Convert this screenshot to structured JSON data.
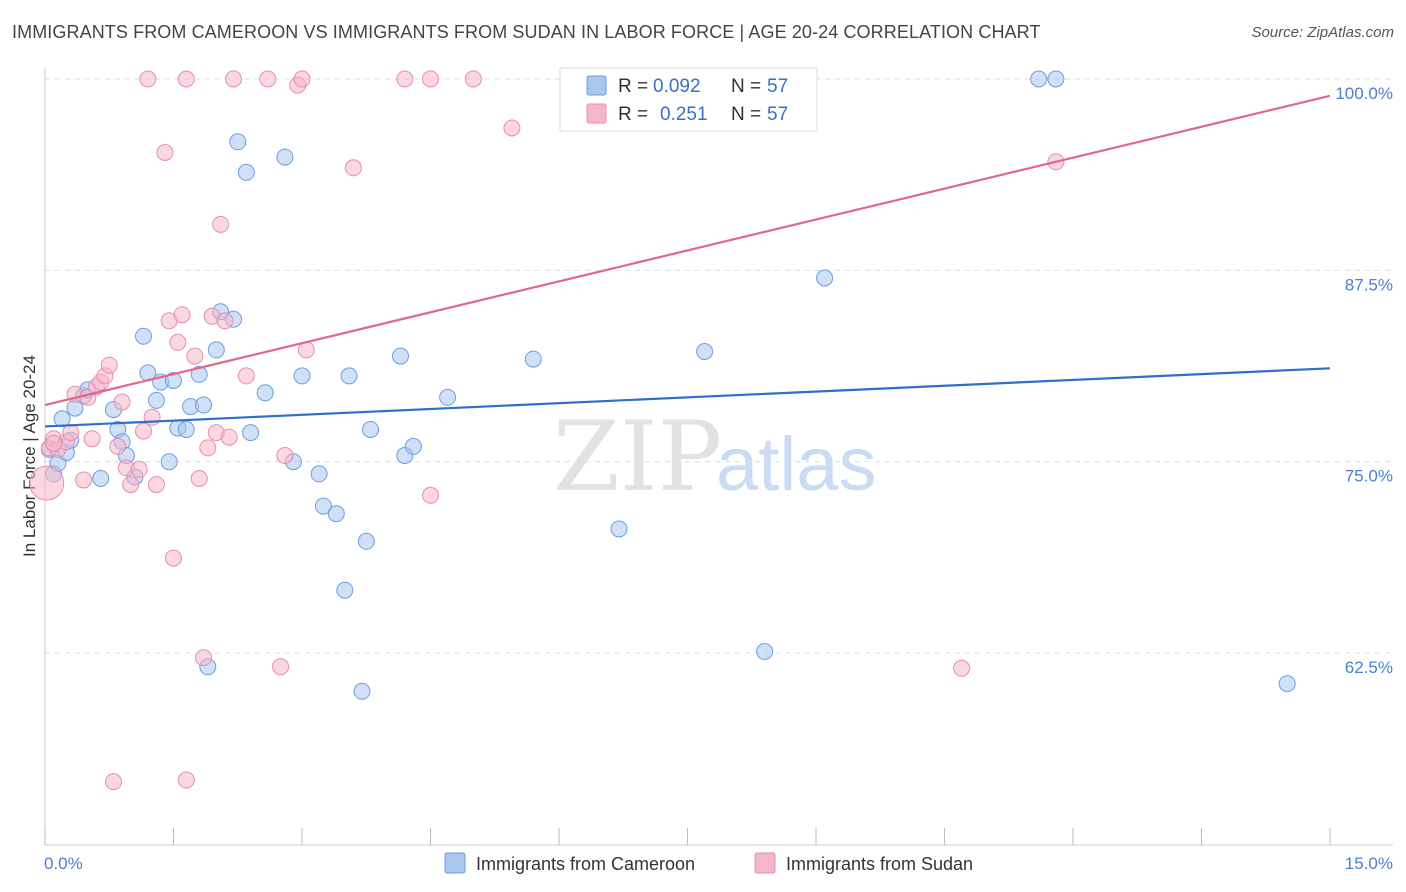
{
  "title": "IMMIGRANTS FROM CAMEROON VS IMMIGRANTS FROM SUDAN IN LABOR FORCE | AGE 20-24 CORRELATION CHART",
  "source": "Source: ZipAtlas.com",
  "watermark": {
    "zip": "ZIP",
    "atlas": "atlas"
  },
  "colors": {
    "cameroon_fill": "#a9c6ee",
    "cameroon_stroke": "#6d9ee0",
    "cameroon_line": "#2f6fcc",
    "sudan_fill": "#f6b6c9",
    "sudan_stroke": "#e58fac",
    "sudan_line": "#e2678f",
    "tick_text": "#4a7fd0",
    "grid": "#dddddd"
  },
  "legend": {
    "rows": [
      {
        "r_label": "R =",
        "r_value": "0.092",
        "n_label": "N =",
        "n_value": "57"
      },
      {
        "r_label": "R =",
        "r_value": "0.251",
        "n_label": "N =",
        "n_value": "57"
      }
    ]
  },
  "chart_data": {
    "type": "scatter",
    "title": "IMMIGRANTS FROM CAMEROON VS IMMIGRANTS FROM SUDAN IN LABOR FORCE | AGE 20-24 CORRELATION CHART",
    "xlabel": "",
    "ylabel": "In Labor Force | Age 20-24",
    "xlim": [
      0,
      15
    ],
    "ylim": [
      52,
      101
    ],
    "x_ticks": [
      "0.0%",
      "15.0%"
    ],
    "y_ticks": [
      {
        "value": 100,
        "label": "100.0%"
      },
      {
        "value": 87.5,
        "label": "87.5%"
      },
      {
        "value": 75,
        "label": "75.0%"
      },
      {
        "value": 62.5,
        "label": "62.5%"
      }
    ],
    "grid": true,
    "legend_position": "top-center",
    "series": [
      {
        "name": "Immigrants from Cameroon",
        "r": 0.092,
        "n": 57,
        "trend": {
          "x": [
            0,
            15
          ],
          "y": [
            77.3,
            81.1
          ]
        },
        "points": [
          [
            0.1,
            74.2
          ],
          [
            0.15,
            74.9
          ],
          [
            0.2,
            77.8
          ],
          [
            0.25,
            75.6
          ],
          [
            0.35,
            78.5
          ],
          [
            0.45,
            79.3
          ],
          [
            0.5,
            79.7
          ],
          [
            0.65,
            73.9
          ],
          [
            0.8,
            78.4
          ],
          [
            0.85,
            77.1
          ],
          [
            0.9,
            76.3
          ],
          [
            0.95,
            75.4
          ],
          [
            1.05,
            74
          ],
          [
            1.15,
            83.2
          ],
          [
            1.2,
            80.8
          ],
          [
            1.3,
            79.0
          ],
          [
            1.35,
            80.2
          ],
          [
            1.45,
            75.0
          ],
          [
            1.5,
            80.3
          ],
          [
            1.55,
            77.2
          ],
          [
            1.65,
            77.1
          ],
          [
            1.7,
            78.6
          ],
          [
            1.8,
            80.7
          ],
          [
            1.85,
            78.7
          ],
          [
            1.9,
            61.6
          ],
          [
            2.0,
            82.3
          ],
          [
            2.05,
            84.8
          ],
          [
            2.2,
            84.3
          ],
          [
            2.25,
            95.9
          ],
          [
            2.35,
            93.9
          ],
          [
            2.4,
            76.9
          ],
          [
            2.57,
            79.5
          ],
          [
            2.8,
            94.9
          ],
          [
            2.9,
            75.0
          ],
          [
            3.0,
            80.6
          ],
          [
            3.2,
            74.2
          ],
          [
            3.25,
            72.1
          ],
          [
            3.4,
            71.6
          ],
          [
            3.5,
            66.6
          ],
          [
            3.55,
            80.6
          ],
          [
            3.7,
            60.0
          ],
          [
            3.75,
            69.8
          ],
          [
            3.8,
            77.1
          ],
          [
            4.15,
            81.9
          ],
          [
            4.2,
            75.4
          ],
          [
            4.3,
            76.0
          ],
          [
            4.7,
            79.2
          ],
          [
            5.7,
            81.7
          ],
          [
            6.7,
            70.6
          ],
          [
            7.7,
            82.2
          ],
          [
            8.4,
            62.6
          ],
          [
            9.1,
            87.0
          ],
          [
            11.6,
            100.0
          ],
          [
            11.8,
            100.0
          ],
          [
            14.5,
            60.5
          ],
          [
            0.05,
            75.8
          ],
          [
            0.3,
            76.4
          ]
        ]
      },
      {
        "name": "Immigrants from Sudan",
        "r": 0.251,
        "n": 57,
        "trend": {
          "x": [
            0,
            15
          ],
          "y": [
            78.7,
            98.9
          ]
        },
        "points": [
          [
            0.02,
            73.6
          ],
          [
            0.05,
            75.9
          ],
          [
            0.1,
            76.5
          ],
          [
            0.15,
            75.8
          ],
          [
            0.25,
            76.3
          ],
          [
            0.3,
            76.9
          ],
          [
            0.35,
            79.4
          ],
          [
            0.45,
            73.8
          ],
          [
            0.5,
            79.2
          ],
          [
            0.55,
            76.5
          ],
          [
            0.6,
            79.9
          ],
          [
            0.65,
            80.2
          ],
          [
            0.7,
            80.6
          ],
          [
            0.75,
            81.3
          ],
          [
            0.8,
            54.1
          ],
          [
            0.85,
            76.0
          ],
          [
            0.9,
            78.9
          ],
          [
            0.95,
            74.6
          ],
          [
            1.0,
            73.5
          ],
          [
            1.1,
            74.5
          ],
          [
            1.15,
            77.0
          ],
          [
            1.2,
            100.0
          ],
          [
            1.25,
            77.9
          ],
          [
            1.3,
            73.5
          ],
          [
            1.4,
            95.2
          ],
          [
            1.45,
            84.2
          ],
          [
            1.5,
            68.7
          ],
          [
            1.55,
            82.8
          ],
          [
            1.6,
            84.6
          ],
          [
            1.65,
            100.0
          ],
          [
            1.65,
            54.2
          ],
          [
            1.75,
            81.9
          ],
          [
            1.8,
            73.9
          ],
          [
            1.85,
            62.2
          ],
          [
            1.9,
            75.9
          ],
          [
            1.95,
            84.5
          ],
          [
            2.0,
            76.9
          ],
          [
            2.05,
            90.5
          ],
          [
            2.1,
            84.2
          ],
          [
            2.15,
            76.6
          ],
          [
            2.2,
            100.0
          ],
          [
            2.35,
            80.6
          ],
          [
            2.6,
            100.0
          ],
          [
            2.75,
            61.6
          ],
          [
            2.8,
            75.4
          ],
          [
            2.95,
            99.6
          ],
          [
            3.0,
            100.0
          ],
          [
            3.05,
            82.3
          ],
          [
            3.6,
            94.2
          ],
          [
            4.2,
            100.0
          ],
          [
            4.5,
            100.0
          ],
          [
            4.5,
            72.8
          ],
          [
            5.0,
            100.0
          ],
          [
            5.45,
            96.8
          ],
          [
            10.7,
            61.5
          ],
          [
            11.8,
            94.6
          ],
          [
            0.1,
            76.2
          ]
        ]
      }
    ]
  }
}
